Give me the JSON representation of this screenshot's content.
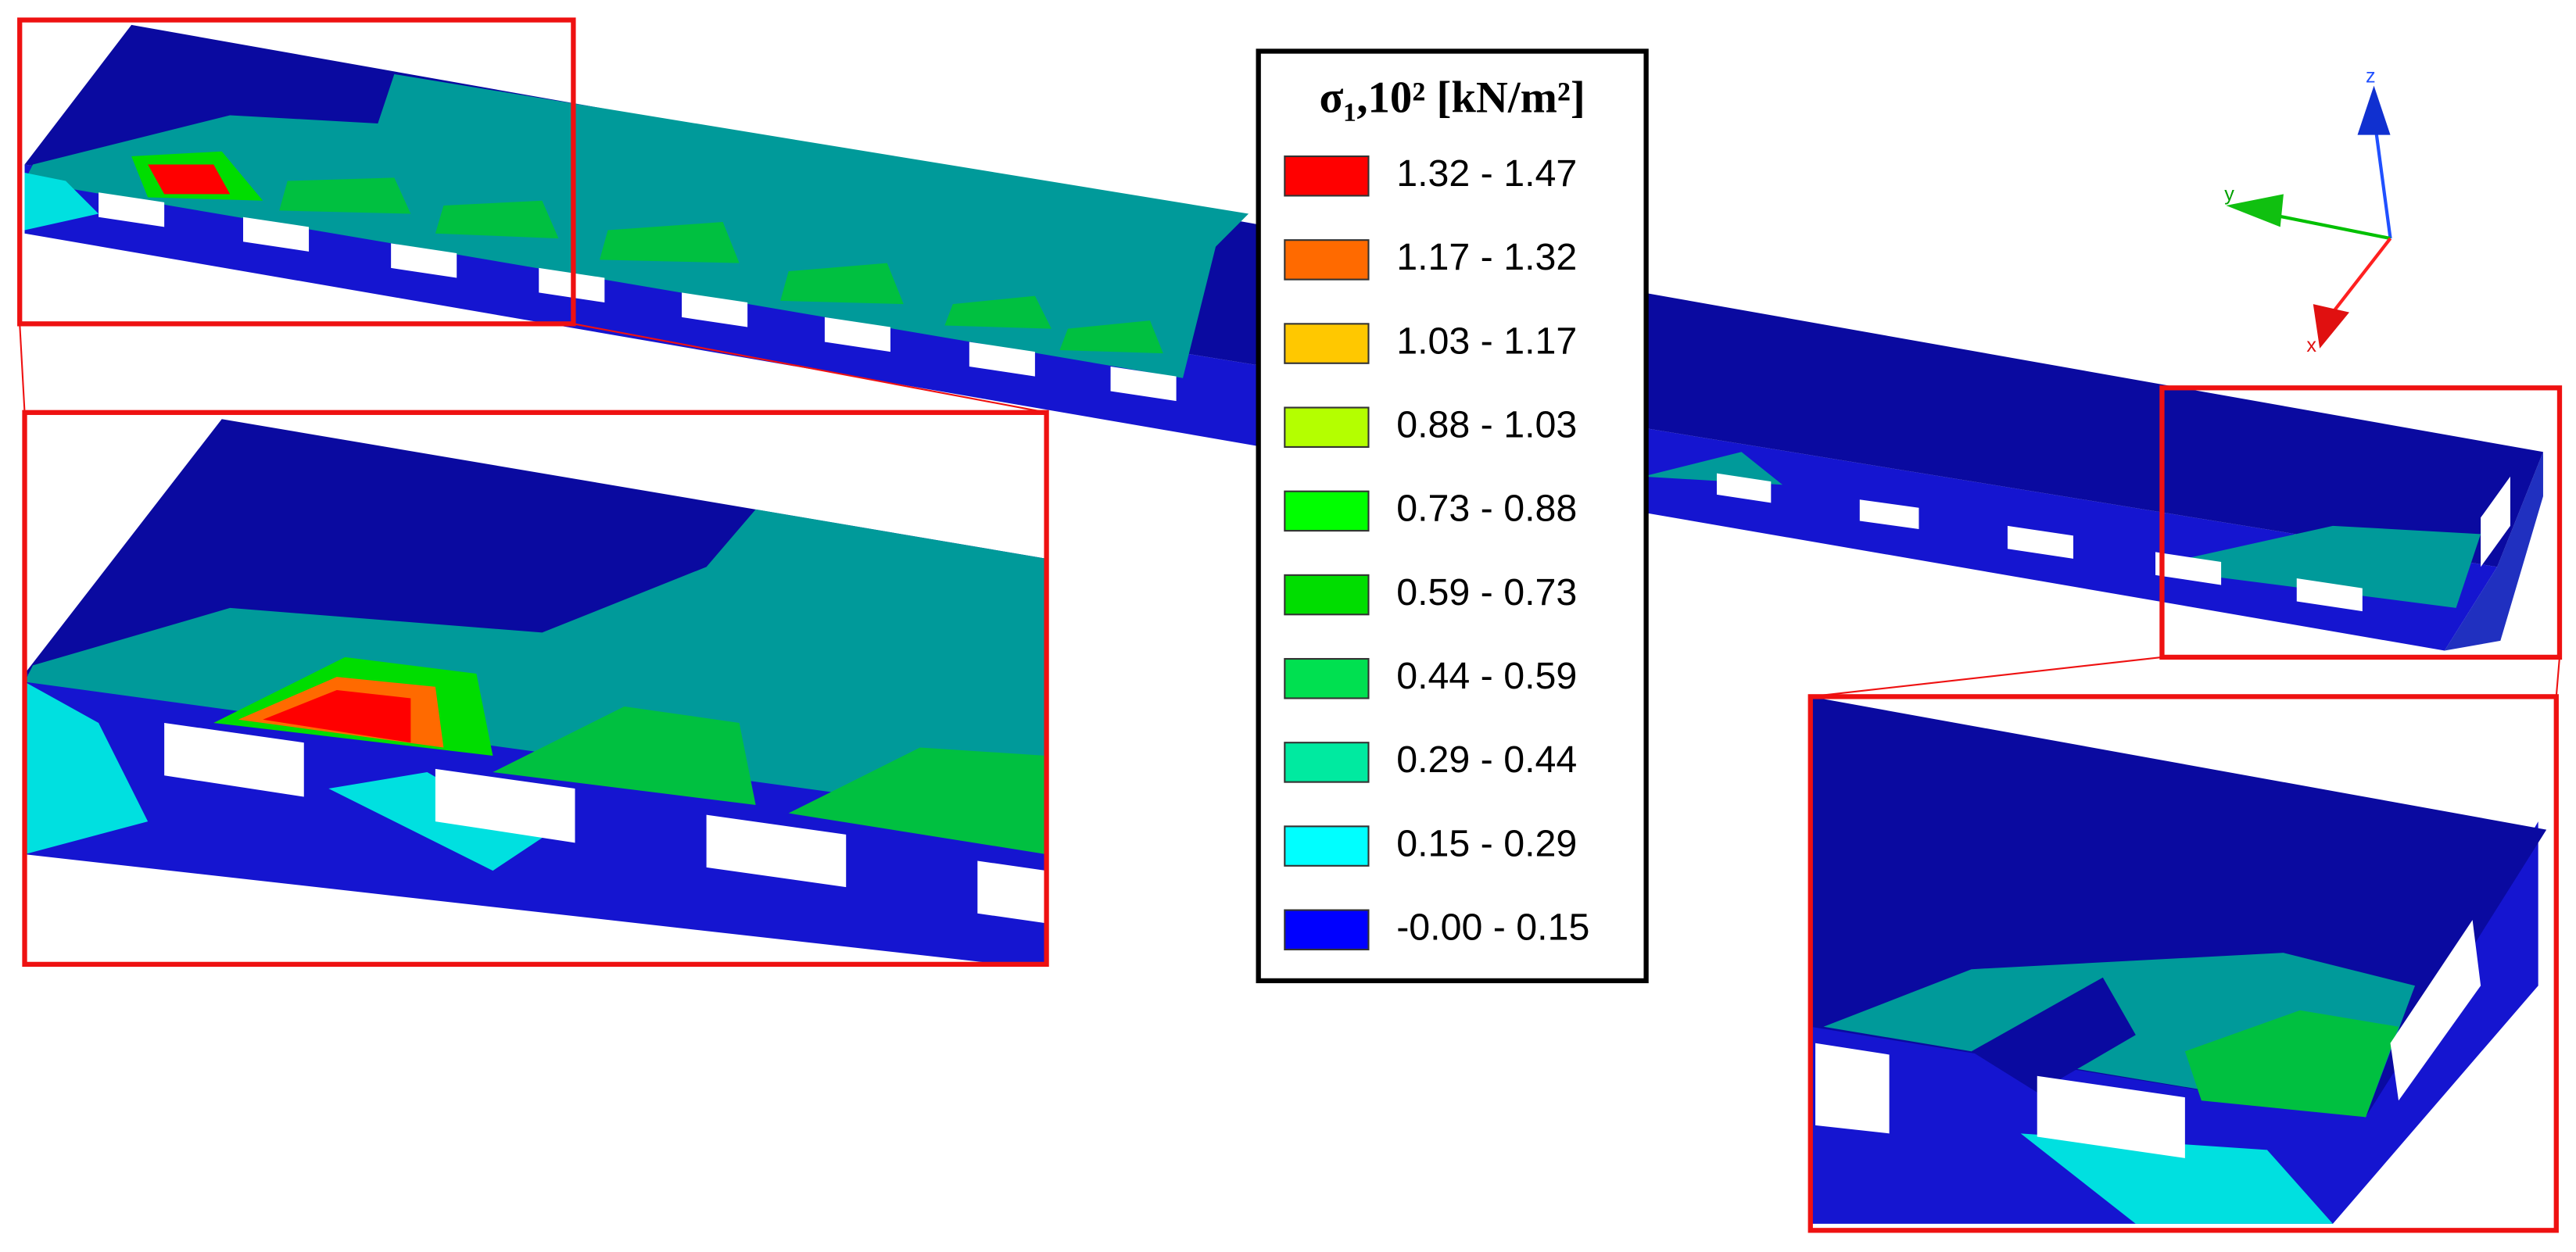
{
  "legend": {
    "title": "σ₁,10² [kN/m²]",
    "items": [
      {
        "label": "1.32 - 1.47",
        "color": "#ff0000"
      },
      {
        "label": "1.17 - 1.32",
        "color": "#ff6a00"
      },
      {
        "label": "1.03 - 1.17",
        "color": "#ffc800"
      },
      {
        "label": "0.88 - 1.03",
        "color": "#b4ff00"
      },
      {
        "label": "0.73 - 0.88",
        "color": "#00ff00"
      },
      {
        "label": "0.59 - 0.73",
        "color": "#00dd00"
      },
      {
        "label": "0.44 - 0.59",
        "color": "#00e050"
      },
      {
        "label": "0.29 - 0.44",
        "color": "#00eaa0"
      },
      {
        "label": "0.15 - 0.29",
        "color": "#00ffff"
      },
      {
        "label": "-0.00 - 0.15",
        "color": "#0000ff"
      }
    ]
  },
  "triad": {
    "z": "z",
    "y": "y",
    "x": "x"
  }
}
